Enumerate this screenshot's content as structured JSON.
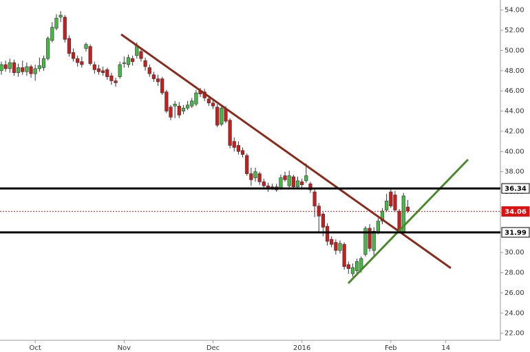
{
  "chart_data": {
    "type": "candlestick",
    "categories": [
      null,
      null,
      null,
      null,
      null,
      null,
      null,
      null,
      "Oct",
      null,
      null,
      null,
      null,
      null,
      null,
      null,
      null,
      null,
      null,
      null,
      null,
      null,
      null,
      null,
      null,
      null,
      null,
      null,
      null,
      "Nov",
      null,
      null,
      null,
      null,
      null,
      null,
      null,
      null,
      null,
      null,
      null,
      null,
      null,
      null,
      null,
      null,
      null,
      null,
      null,
      null,
      "Dec",
      null,
      null,
      null,
      null,
      null,
      null,
      null,
      null,
      null,
      null,
      null,
      null,
      null,
      null,
      null,
      null,
      null,
      null,
      null,
      null,
      "2016",
      null,
      null,
      null,
      null,
      null,
      null,
      null,
      null,
      null,
      null,
      null,
      null,
      null,
      null,
      null,
      null,
      null,
      null,
      null,
      null,
      "Feb",
      null,
      null,
      null,
      null,
      null,
      null,
      null,
      null,
      null,
      null,
      null,
      null,
      "14"
    ],
    "open": [
      48.0,
      48.6,
      48.2,
      48.8,
      47.8,
      48.3,
      47.9,
      48.4,
      47.7,
      48.2,
      48.3,
      49.2,
      51.0,
      52.2,
      53.3,
      53.3,
      51.2,
      49.8,
      49.2,
      48.9,
      50.2,
      50.4,
      48.6,
      48.2,
      48.0,
      48.1,
      47.5,
      47.0,
      47.4,
      48.7,
      48.6,
      49.2,
      49.5,
      49.9,
      49.0,
      48.3,
      47.6,
      47.2,
      47.2,
      45.9,
      44.4,
      44.5,
      44.5,
      44.0,
      44.3,
      44.5,
      44.7,
      46.0,
      45.9,
      45.2,
      44.8,
      44.4,
      42.7,
      44.2,
      43.1,
      41.0,
      40.6,
      40.1,
      39.6,
      37.8,
      37.4,
      37.8,
      37.0,
      36.6,
      36.5,
      36.5,
      36.4,
      37.6,
      36.6,
      37.5,
      36.5,
      37.0,
      37.1,
      36.8,
      36.0,
      34.6,
      33.8,
      32.6,
      31.3,
      31.0,
      30.2,
      30.8,
      28.8,
      27.9,
      28.2,
      28.3,
      29.8,
      32.4,
      30.2,
      32.0,
      33.1,
      34.2,
      36.0,
      35.7,
      34.1,
      32.0,
      34.5,
      null,
      null,
      null,
      null,
      null,
      null,
      null,
      null,
      null
    ],
    "high": [
      48.9,
      49.0,
      49.2,
      49.1,
      48.7,
      49.0,
      48.8,
      48.6,
      48.6,
      49.3,
      49.5,
      51.4,
      52.8,
      53.6,
      53.9,
      53.5,
      51.5,
      50.2,
      49.5,
      49.4,
      50.8,
      50.6,
      48.9,
      48.6,
      48.4,
      48.3,
      47.8,
      47.3,
      48.9,
      49.4,
      49.6,
      49.5,
      50.8,
      50.3,
      49.3,
      48.6,
      47.9,
      47.6,
      47.4,
      46.1,
      44.6,
      45.0,
      44.9,
      44.6,
      45.0,
      45.3,
      46.1,
      46.3,
      46.2,
      45.5,
      45.1,
      44.7,
      44.5,
      44.5,
      43.3,
      41.4,
      41.0,
      40.4,
      39.8,
      38.4,
      38.4,
      38.0,
      37.3,
      36.9,
      36.8,
      36.8,
      37.7,
      38.0,
      38.1,
      37.7,
      37.5,
      37.3,
      38.8,
      37.0,
      36.3,
      34.9,
      34.0,
      32.9,
      31.6,
      31.3,
      31.2,
      31.0,
      29.1,
      28.9,
      29.4,
      29.6,
      32.6,
      32.8,
      32.5,
      33.4,
      34.4,
      35.8,
      36.3,
      36.1,
      34.3,
      35.9,
      35.2,
      null,
      null,
      null,
      null,
      null,
      null,
      null,
      null,
      null
    ],
    "low": [
      47.6,
      47.9,
      47.8,
      47.5,
      47.4,
      47.6,
      47.5,
      47.3,
      47.0,
      47.9,
      48.0,
      49.0,
      50.8,
      52.0,
      52.8,
      50.8,
      49.4,
      48.9,
      48.4,
      48.3,
      49.9,
      48.5,
      47.7,
      47.6,
      47.5,
      47.1,
      46.6,
      46.4,
      47.2,
      48.3,
      48.3,
      48.5,
      49.2,
      48.9,
      48.0,
      47.4,
      46.9,
      46.5,
      45.6,
      43.8,
      43.1,
      43.3,
      43.3,
      43.7,
      44.1,
      44.3,
      44.5,
      45.4,
      45.0,
      44.5,
      44.2,
      42.4,
      42.5,
      42.8,
      40.3,
      40.0,
      39.7,
      39.4,
      37.6,
      36.6,
      37.0,
      36.7,
      36.4,
      36.0,
      36.2,
      36.0,
      36.2,
      37.0,
      36.4,
      36.3,
      36.3,
      36.4,
      36.9,
      35.9,
      33.5,
      32.0,
      31.6,
      30.7,
      30.5,
      29.8,
      29.9,
      28.3,
      27.9,
      27.6,
      27.7,
      28.0,
      29.6,
      30.1,
      29.7,
      31.8,
      32.8,
      34.0,
      34.4,
      34.0,
      31.9,
      31.8,
      33.9,
      null,
      null,
      null,
      null,
      null,
      null,
      null,
      null,
      null
    ],
    "close": [
      48.6,
      48.2,
      48.8,
      47.8,
      48.3,
      47.9,
      48.4,
      47.7,
      48.2,
      48.5,
      49.2,
      51.2,
      52.3,
      53.2,
      53.5,
      51.1,
      49.7,
      49.2,
      48.8,
      48.6,
      50.6,
      48.7,
      48.1,
      47.9,
      47.8,
      47.4,
      47.0,
      46.8,
      48.6,
      48.8,
      49.3,
      48.9,
      50.5,
      49.2,
      48.4,
      47.7,
      47.2,
      46.9,
      45.8,
      44.0,
      43.4,
      44.7,
      43.6,
      44.3,
      44.6,
      45.0,
      45.8,
      45.7,
      45.3,
      44.8,
      44.5,
      42.6,
      44.3,
      43.0,
      40.6,
      40.4,
      40.0,
      39.7,
      37.8,
      37.2,
      38.0,
      37.0,
      36.6,
      36.3,
      36.4,
      36.2,
      37.4,
      37.2,
      37.6,
      36.5,
      37.1,
      36.7,
      37.6,
      36.2,
      34.6,
      33.6,
      32.5,
      31.1,
      30.8,
      30.2,
      30.9,
      28.6,
      28.4,
      28.5,
      29.1,
      29.4,
      32.4,
      30.4,
      32.1,
      33.1,
      34.1,
      35.1,
      34.6,
      34.2,
      32.0,
      35.6,
      34.1,
      null,
      null,
      null,
      null,
      null,
      null,
      null,
      null,
      null
    ],
    "up_color": "#45b845",
    "down_color": "#c81e1e",
    "ylim": [
      21.3,
      55.0
    ],
    "yticks": [
      {
        "value": 22,
        "label": "22.00"
      },
      {
        "value": 24,
        "label": "24.00"
      },
      {
        "value": 26,
        "label": "26.00"
      },
      {
        "value": 28,
        "label": "28.00"
      },
      {
        "value": 30,
        "label": "30.00"
      },
      {
        "value": 32,
        "label": "32.00"
      },
      {
        "value": 34,
        "label": "34.00"
      },
      {
        "value": 36,
        "label": "36.00"
      },
      {
        "value": 38,
        "label": "38.00"
      },
      {
        "value": 40,
        "label": "40.00"
      },
      {
        "value": 42,
        "label": "42.00"
      },
      {
        "value": 44,
        "label": "44.00"
      },
      {
        "value": 46,
        "label": "46.00"
      },
      {
        "value": 48,
        "label": "48.00"
      },
      {
        "value": 50,
        "label": "50.00"
      },
      {
        "value": 52,
        "label": "52.00"
      },
      {
        "value": 54,
        "label": "54.00"
      }
    ],
    "levels": [
      {
        "value": 36.34,
        "color": "#000000",
        "style": "solid"
      },
      {
        "value": 34.06,
        "color": "#e01010",
        "style": "dotted"
      },
      {
        "value": 31.99,
        "color": "#000000",
        "style": "solid"
      }
    ]
  }
}
